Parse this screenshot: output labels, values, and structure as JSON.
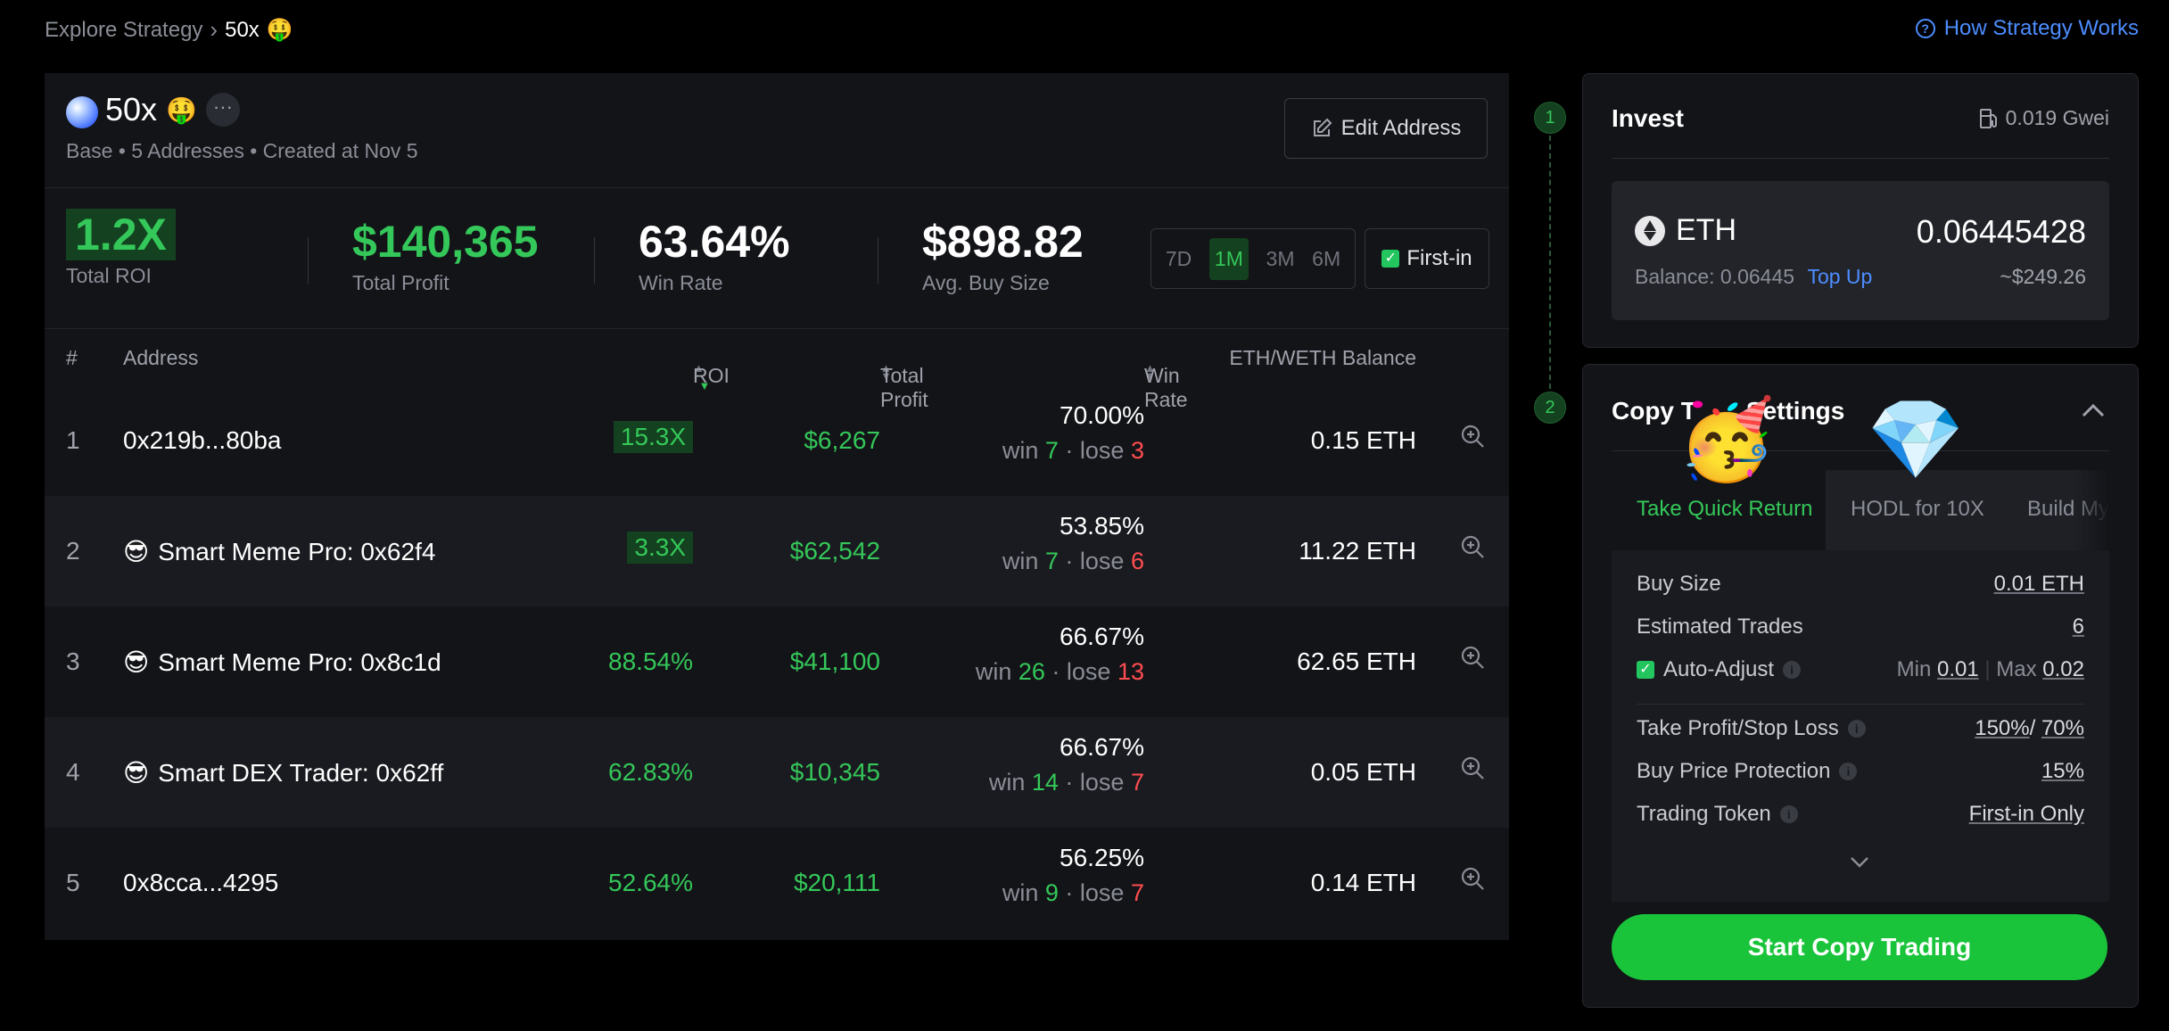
{
  "breadcrumb": {
    "parent": "Explore Strategy",
    "current": "50x",
    "current_emoji": "🤑"
  },
  "help_link": "How Strategy Works",
  "strategy": {
    "name": "50x",
    "name_emoji": "🤑",
    "more": "···",
    "subtitle": "Base • 5 Addresses • Created at Nov 5",
    "edit_label": "Edit Address"
  },
  "stats": {
    "roi": {
      "value": "1.2X",
      "label": "Total ROI"
    },
    "profit": {
      "value": "$140,365",
      "label": "Total Profit"
    },
    "winrate": {
      "value": "63.64%",
      "label": "Win Rate"
    },
    "buysize": {
      "value": "$898.82",
      "label": "Avg. Buy Size"
    }
  },
  "periods": {
    "options": [
      "7D",
      "1M",
      "3M",
      "6M"
    ],
    "selected": "1M"
  },
  "first_in": {
    "label": "First-in",
    "checked": true
  },
  "table": {
    "headers": {
      "num": "#",
      "address": "Address",
      "roi": "ROI",
      "profit": "Total Profit",
      "winrate": "Win Rate",
      "balance": "ETH/WETH Balance"
    },
    "rows": [
      {
        "n": "1",
        "emoji": "",
        "addr": "0x219b...80ba",
        "roi": "15.3X",
        "roi_boxed": true,
        "profit": "$6,267",
        "winrate": "70.00%",
        "win_label": "win",
        "win": "7",
        "lose_label": "lose",
        "lose": "3",
        "balance": "0.15 ETH"
      },
      {
        "n": "2",
        "emoji": "😎",
        "addr": "Smart Meme Pro: 0x62f4",
        "roi": "3.3X",
        "roi_boxed": true,
        "profit": "$62,542",
        "winrate": "53.85%",
        "win_label": "win",
        "win": "7",
        "lose_label": "lose",
        "lose": "6",
        "balance": "11.22 ETH"
      },
      {
        "n": "3",
        "emoji": "😎",
        "addr": "Smart Meme Pro: 0x8c1d",
        "roi": "88.54%",
        "roi_boxed": false,
        "profit": "$41,100",
        "winrate": "66.67%",
        "win_label": "win",
        "win": "26",
        "lose_label": "lose",
        "lose": "13",
        "balance": "62.65 ETH"
      },
      {
        "n": "4",
        "emoji": "😎",
        "addr": "Smart DEX Trader: 0x62ff",
        "roi": "62.83%",
        "roi_boxed": false,
        "profit": "$10,345",
        "winrate": "66.67%",
        "win_label": "win",
        "win": "14",
        "lose_label": "lose",
        "lose": "7",
        "balance": "0.05 ETH"
      },
      {
        "n": "5",
        "emoji": "",
        "addr": "0x8cca...4295",
        "roi": "52.64%",
        "roi_boxed": false,
        "profit": "$20,111",
        "winrate": "56.25%",
        "win_label": "win",
        "win": "9",
        "lose_label": "lose",
        "lose": "7",
        "balance": "0.14 ETH"
      }
    ]
  },
  "steps": [
    "1",
    "2"
  ],
  "invest": {
    "title": "Invest",
    "gas": "0.019 Gwei",
    "token": "ETH",
    "amount": "0.06445428",
    "balance": "Balance: 0.06445",
    "top_up": "Top Up",
    "usd": "~$249.26"
  },
  "settings": {
    "title": "Copy Trade Settings",
    "title_visible_left": "Copy T",
    "title_visible_right": "Settings",
    "overlay_emojis": [
      "🥳",
      "💎"
    ],
    "tabs": [
      "Take Quick Return",
      "HODL for 10X",
      "Build My"
    ],
    "active_tab": "Take Quick Return",
    "buy_size": {
      "label": "Buy Size",
      "value": "0.01 ETH"
    },
    "est_trades": {
      "label": "Estimated Trades",
      "value": "6"
    },
    "auto_adjust": {
      "label": "Auto-Adjust",
      "checked": true,
      "min_label": "Min",
      "min": "0.01",
      "max_label": "Max",
      "max": "0.02"
    },
    "tp_sl": {
      "label": "Take Profit/Stop Loss",
      "tp": "150%",
      "sl": "70%"
    },
    "protection": {
      "label": "Buy Price Protection",
      "value": "15%"
    },
    "trading_token": {
      "label": "Trading Token",
      "value": "First-in Only"
    },
    "start_label": "Start Copy Trading"
  }
}
